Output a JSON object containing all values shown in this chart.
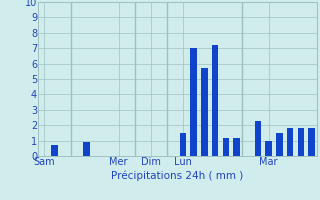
{
  "values": [
    0,
    0.7,
    0,
    0,
    0.9,
    0,
    0,
    0,
    0,
    0,
    0,
    0,
    0,
    1.5,
    7.0,
    5.7,
    7.2,
    1.2,
    1.2,
    0,
    2.3,
    1.0,
    1.5,
    1.8,
    1.8,
    1.8
  ],
  "num_bars": 26,
  "day_labels": [
    "Sam",
    "Mer",
    "Dim",
    "Lun",
    "Mar"
  ],
  "day_tick_positions": [
    1,
    8,
    11,
    14,
    22
  ],
  "xlabel": "Précipitations 24h ( mm )",
  "ylim": [
    0,
    10
  ],
  "yticks": [
    0,
    1,
    2,
    3,
    4,
    5,
    6,
    7,
    8,
    9,
    10
  ],
  "bar_color": "#1144cc",
  "background_color": "#d0ecec",
  "grid_color": "#a0c0c0",
  "vline_positions": [
    3.5,
    9.5,
    12.5,
    19.5
  ],
  "label_fontsize": 7.5,
  "tick_fontsize": 7,
  "figwidth": 3.2,
  "figheight": 2.0,
  "dpi": 100
}
